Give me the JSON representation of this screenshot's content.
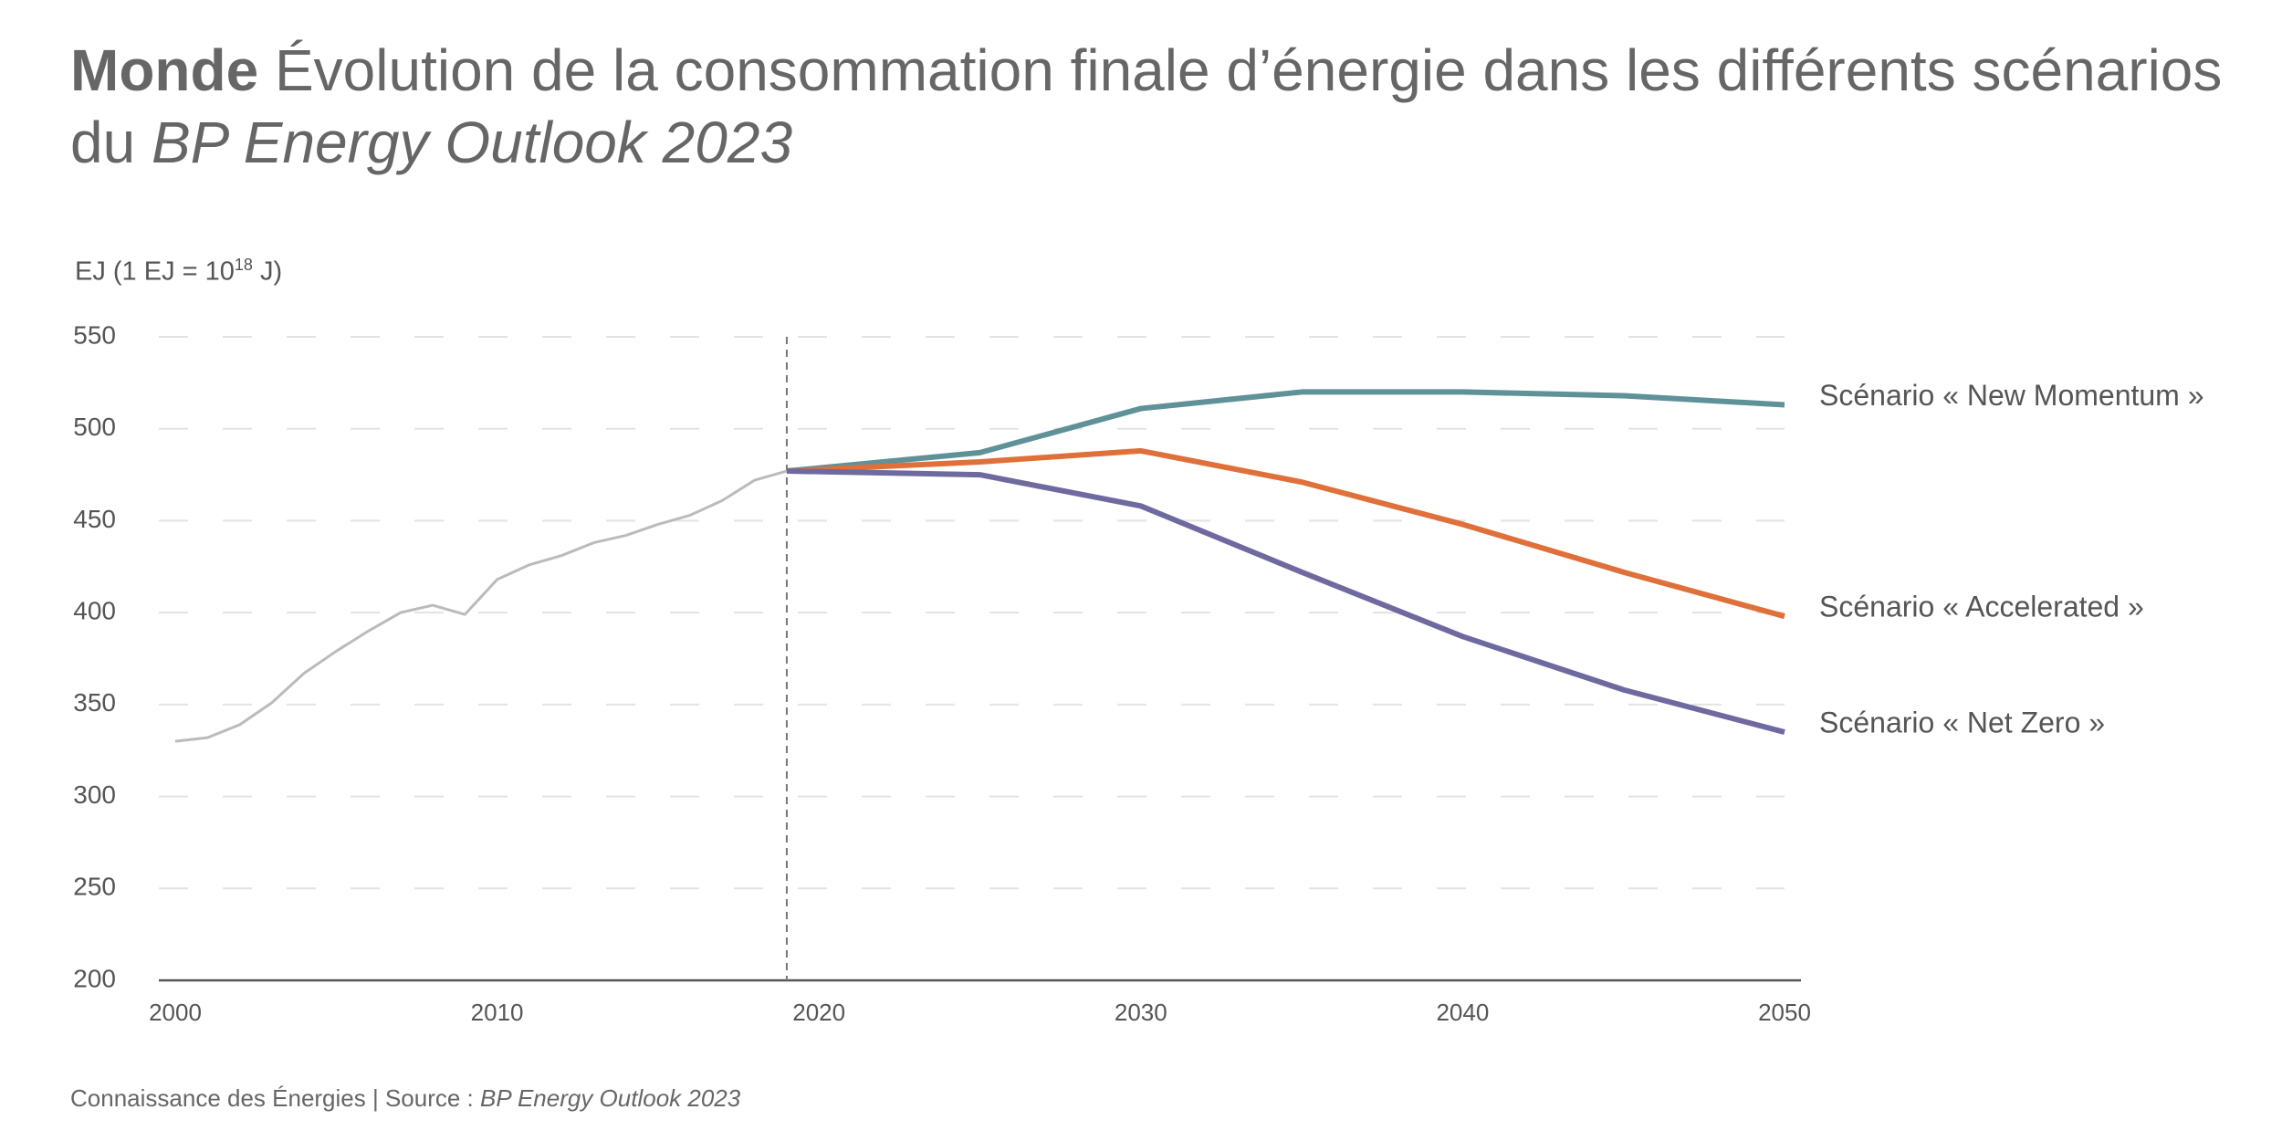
{
  "chart_data": {
    "type": "line",
    "title": {
      "bold": "Monde",
      "text": " Évolution de la consommation finale d’énergie dans les différents scénarios du ",
      "italic": "BP Energy Outlook 2023"
    },
    "y_label": {
      "text": "EJ (1 EJ = 10",
      "superscript": "18",
      "suffix": " J)"
    },
    "footer": {
      "text": "Connaissance des Énergies | Source : ",
      "italic": "BP Energy Outlook 2023"
    },
    "xlim": [
      2000,
      2050
    ],
    "xticks": [
      2000,
      2010,
      2020,
      2030,
      2040,
      2050
    ],
    "ylim": [
      200,
      550
    ],
    "yticks": [
      200,
      250,
      300,
      350,
      400,
      450,
      500,
      550
    ],
    "grid": true,
    "vline_x": 2019,
    "series": [
      {
        "color": "#bbbbbb",
        "x": [
          2000,
          2001,
          2002,
          2003,
          2004,
          2005,
          2006,
          2007,
          2008,
          2009,
          2010,
          2011,
          2012,
          2013,
          2014,
          2015,
          2016,
          2017,
          2018,
          2019
        ],
        "values": [
          330,
          332,
          339,
          351,
          367,
          379,
          390,
          400,
          404,
          399,
          418,
          426,
          431,
          438,
          442,
          448,
          453,
          461,
          472,
          477
        ]
      },
      {
        "name": "Scénario « New Momentum »",
        "color": "#5f9199",
        "x": [
          2019,
          2025,
          2030,
          2035,
          2040,
          2045,
          2050
        ],
        "values": [
          477,
          487,
          511,
          520,
          520,
          518,
          513
        ]
      },
      {
        "name": "Scénario « Accelerated »",
        "color": "#e0703a",
        "x": [
          2019,
          2025,
          2030,
          2035,
          2040,
          2045,
          2050
        ],
        "values": [
          477,
          482,
          488,
          471,
          448,
          422,
          398
        ]
      },
      {
        "name": "Scénario « Net Zero »",
        "color": "#6e6a9f",
        "x": [
          2019,
          2025,
          2030,
          2035,
          2040,
          2045,
          2050
        ],
        "values": [
          477,
          475,
          458,
          422,
          387,
          358,
          335
        ]
      }
    ]
  }
}
